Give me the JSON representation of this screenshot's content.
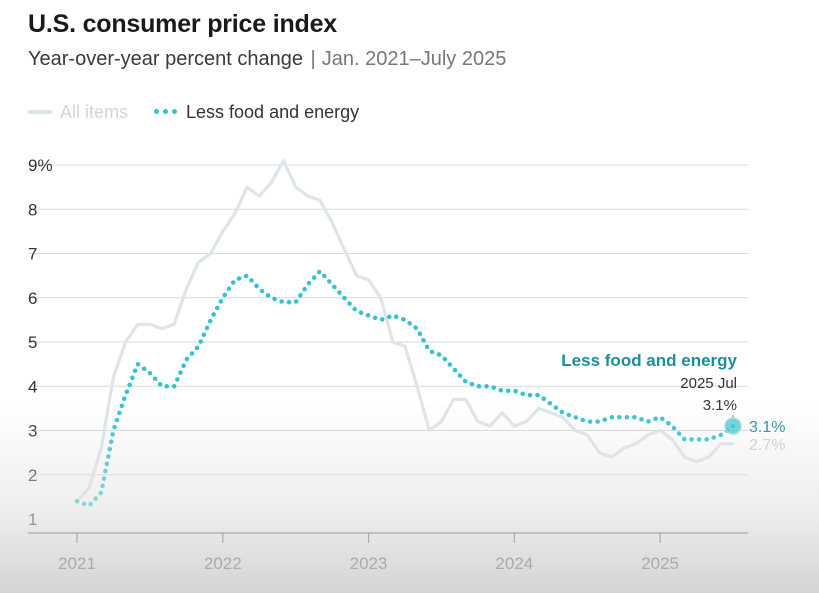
{
  "header": {
    "title": "U.S. consumer price index",
    "subtitle_main": "Year-over-year percent change",
    "subtitle_sep": "|",
    "subtitle_range": "Jan. 2021–July 2025"
  },
  "legend": {
    "all_items": "All items",
    "core": "Less food and energy"
  },
  "colors": {
    "core": "#33c2cf",
    "all_items": "#dde5eb",
    "annotation": "#1c8f9a",
    "grid": "#d9d9d9"
  },
  "chart_data": {
    "type": "line",
    "title": "U.S. consumer price index",
    "subtitle": "Year-over-year percent change | Jan. 2021–July 2025",
    "ylim": [
      1,
      9
    ],
    "y_ticks": [
      "1",
      "2",
      "3",
      "4",
      "5",
      "6",
      "7",
      "8",
      "9%"
    ],
    "x_ticks": [
      "2021",
      "2022",
      "2023",
      "2024",
      "2025"
    ],
    "x_start": 2021.0,
    "x_end": 2025.5,
    "series": [
      {
        "name": "All items",
        "x": [
          2021.0,
          2021.083,
          2021.167,
          2021.25,
          2021.333,
          2021.417,
          2021.5,
          2021.583,
          2021.667,
          2021.75,
          2021.833,
          2021.917,
          2022.0,
          2022.083,
          2022.167,
          2022.25,
          2022.333,
          2022.417,
          2022.5,
          2022.583,
          2022.667,
          2022.75,
          2022.833,
          2022.917,
          2023.0,
          2023.083,
          2023.167,
          2023.25,
          2023.333,
          2023.417,
          2023.5,
          2023.583,
          2023.667,
          2023.75,
          2023.833,
          2023.917,
          2024.0,
          2024.083,
          2024.167,
          2024.25,
          2024.333,
          2024.417,
          2024.5,
          2024.583,
          2024.667,
          2024.75,
          2024.833,
          2024.917,
          2025.0,
          2025.083,
          2025.167,
          2025.25,
          2025.333,
          2025.417,
          2025.5
        ],
        "values": [
          1.4,
          1.7,
          2.6,
          4.2,
          5.0,
          5.4,
          5.4,
          5.3,
          5.4,
          6.2,
          6.8,
          7.0,
          7.5,
          7.9,
          8.5,
          8.3,
          8.6,
          9.1,
          8.5,
          8.3,
          8.2,
          7.7,
          7.1,
          6.5,
          6.4,
          6.0,
          5.0,
          4.9,
          4.0,
          3.0,
          3.2,
          3.7,
          3.7,
          3.2,
          3.1,
          3.4,
          3.1,
          3.2,
          3.5,
          3.4,
          3.3,
          3.0,
          2.9,
          2.5,
          2.4,
          2.6,
          2.7,
          2.9,
          3.0,
          2.8,
          2.4,
          2.3,
          2.4,
          2.7,
          2.7
        ]
      },
      {
        "name": "Less food and energy",
        "x": [
          2021.0,
          2021.083,
          2021.167,
          2021.25,
          2021.333,
          2021.417,
          2021.5,
          2021.583,
          2021.667,
          2021.75,
          2021.833,
          2021.917,
          2022.0,
          2022.083,
          2022.167,
          2022.25,
          2022.333,
          2022.417,
          2022.5,
          2022.583,
          2022.667,
          2022.75,
          2022.833,
          2022.917,
          2023.0,
          2023.083,
          2023.167,
          2023.25,
          2023.333,
          2023.417,
          2023.5,
          2023.583,
          2023.667,
          2023.75,
          2023.833,
          2023.917,
          2024.0,
          2024.083,
          2024.167,
          2024.25,
          2024.333,
          2024.417,
          2024.5,
          2024.583,
          2024.667,
          2024.75,
          2024.833,
          2024.917,
          2025.0,
          2025.083,
          2025.167,
          2025.25,
          2025.333,
          2025.417,
          2025.5
        ],
        "values": [
          1.4,
          1.3,
          1.6,
          3.0,
          3.8,
          4.5,
          4.3,
          4.0,
          4.0,
          4.6,
          4.9,
          5.5,
          6.0,
          6.4,
          6.5,
          6.2,
          6.0,
          5.9,
          5.9,
          6.3,
          6.6,
          6.3,
          6.0,
          5.7,
          5.6,
          5.5,
          5.6,
          5.5,
          5.3,
          4.8,
          4.7,
          4.4,
          4.1,
          4.0,
          4.0,
          3.9,
          3.9,
          3.8,
          3.8,
          3.6,
          3.4,
          3.3,
          3.2,
          3.2,
          3.3,
          3.3,
          3.3,
          3.2,
          3.3,
          3.1,
          2.8,
          2.8,
          2.8,
          2.9,
          3.1
        ]
      }
    ],
    "annotation": {
      "label": "Less food and energy",
      "date": "2025 Jul",
      "value": "3.1%",
      "x": 2025.5,
      "y": 3.1
    },
    "end_labels": [
      {
        "series": "Less food and energy",
        "text": "3.1%",
        "y": 3.1
      },
      {
        "series": "All items",
        "text": "2.7%",
        "y": 2.7
      }
    ]
  }
}
